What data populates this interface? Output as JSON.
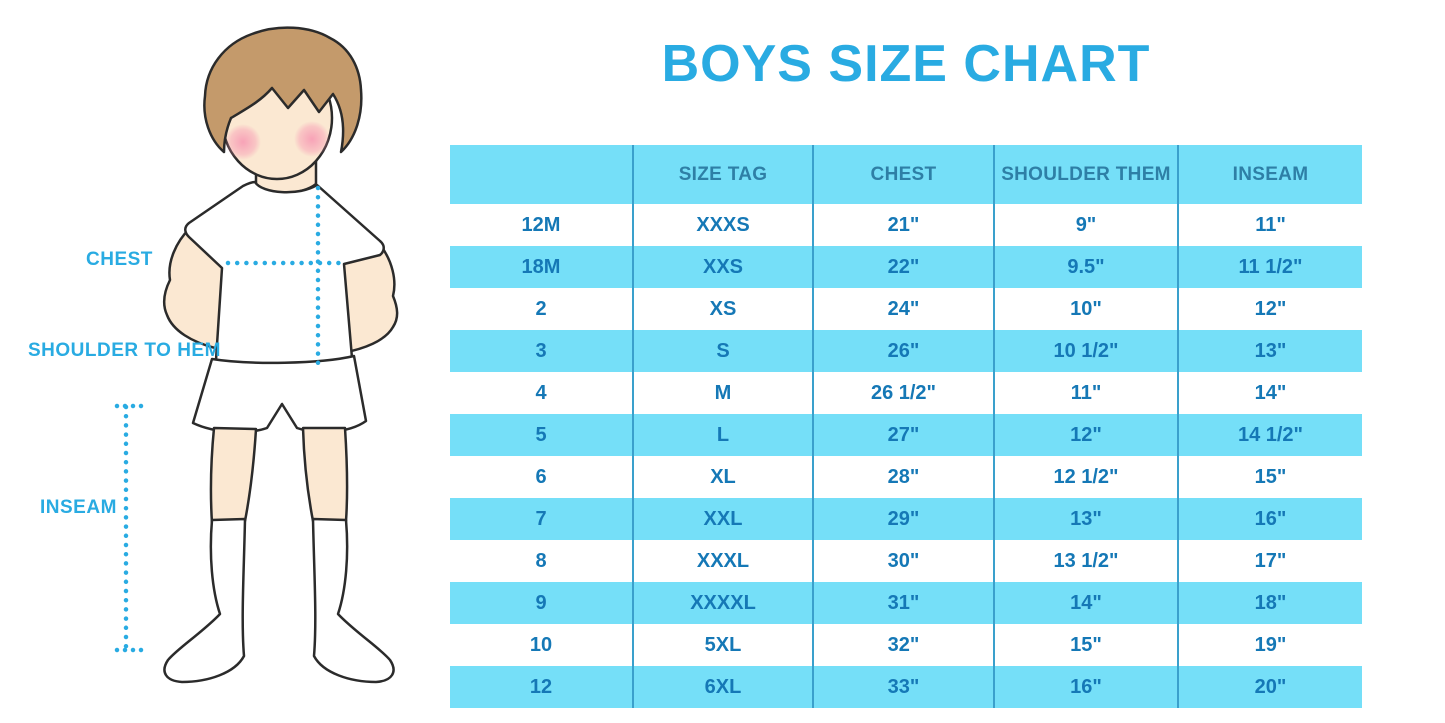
{
  "title": "BOYS SIZE CHART",
  "figure": {
    "labels": {
      "chest": "CHEST",
      "shoulder_to_hem": "SHOULDER TO HEM",
      "inseam": "INSEAM"
    }
  },
  "chart_data": {
    "type": "table",
    "title": "BOYS SIZE CHART",
    "columns": [
      "",
      "SIZE TAG",
      "CHEST",
      "SHOULDER THEM",
      "INSEAM"
    ],
    "rows": [
      [
        "12M",
        "XXXS",
        "21\"",
        "9\"",
        "11\""
      ],
      [
        "18M",
        "XXS",
        "22\"",
        "9.5\"",
        "11 1/2\""
      ],
      [
        "2",
        "XS",
        "24\"",
        "10\"",
        "12\""
      ],
      [
        "3",
        "S",
        "26\"",
        "10 1/2\"",
        "13\""
      ],
      [
        "4",
        "M",
        "26 1/2\"",
        "11\"",
        "14\""
      ],
      [
        "5",
        "L",
        "27\"",
        "12\"",
        "14 1/2\""
      ],
      [
        "6",
        "XL",
        "28\"",
        "12 1/2\"",
        "15\""
      ],
      [
        "7",
        "XXL",
        "29\"",
        "13\"",
        "16\""
      ],
      [
        "8",
        "XXXL",
        "30\"",
        "13 1/2\"",
        "17\""
      ],
      [
        "9",
        "XXXXL",
        "31\"",
        "14\"",
        "18\""
      ],
      [
        "10",
        "5XL",
        "32\"",
        "15\"",
        "19\""
      ],
      [
        "12",
        "6XL",
        "33\"",
        "16\"",
        "20\""
      ]
    ],
    "layout": {
      "alternating_rows": "header and odd rows cyan, even rows white",
      "grid": "vertical dividers only"
    }
  },
  "colors": {
    "accent_blue": "#29ABE2",
    "row_alt_bg": "#75DFF8",
    "cell_text": "#1578B6",
    "header_text": "#2E7FA6",
    "divider": "#3AA0CC",
    "hair": "#C49A6B",
    "skin": "#FBE8D2",
    "blush": "#F79BB4",
    "outline": "#2B2B2B"
  }
}
